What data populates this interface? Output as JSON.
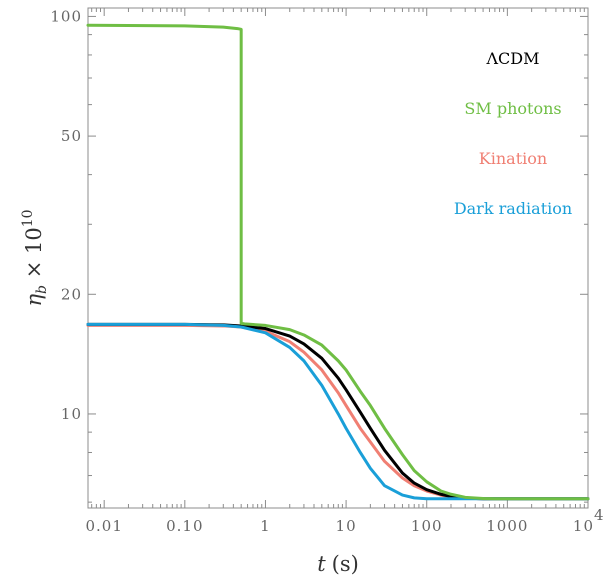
{
  "chart_data": {
    "type": "line",
    "xlabel_var": "t",
    "xlabel_unit": "(s)",
    "ylabel_var": "η",
    "ylabel_sub": "b",
    "ylabel_rest": " × 10",
    "ylabel_sup": "10",
    "x_scale": "log",
    "y_scale": "log",
    "xlim": [
      0.0063,
      10000
    ],
    "ylim": [
      5.8,
      105
    ],
    "grid": false,
    "legend_position": "top-right",
    "x_ticks_major": [
      {
        "value": 0.01,
        "label": "0.01"
      },
      {
        "value": 0.1,
        "label": "0.10"
      },
      {
        "value": 1,
        "label": "1"
      },
      {
        "value": 10,
        "label": "10"
      },
      {
        "value": 100,
        "label": "100"
      },
      {
        "value": 1000,
        "label": "1000"
      },
      {
        "value": 10000,
        "label": "10",
        "sup": "4"
      }
    ],
    "y_ticks_major": [
      {
        "value": 10,
        "label": "10"
      },
      {
        "value": 20,
        "label": "20"
      },
      {
        "value": 50,
        "label": "50"
      },
      {
        "value": 100,
        "label": "100"
      }
    ],
    "series": [
      {
        "name": "Kination",
        "color": "#f07f73",
        "x": [
          0.0063,
          0.1,
          0.3,
          0.5,
          1,
          2,
          3,
          5,
          8,
          10,
          15,
          20,
          30,
          50,
          70,
          100,
          150,
          200,
          300,
          500,
          700,
          1000,
          3000,
          10000
        ],
        "y": [
          16.7,
          16.7,
          16.65,
          16.55,
          16.15,
          15.2,
          14.3,
          12.9,
          11.3,
          10.5,
          9.2,
          8.5,
          7.6,
          6.9,
          6.6,
          6.4,
          6.25,
          6.18,
          6.14,
          6.12,
          6.12,
          6.12,
          6.12,
          6.12
        ]
      },
      {
        "name": "ΛCDM",
        "color": "#000000",
        "x": [
          0.0063,
          0.1,
          0.3,
          0.5,
          1,
          2,
          3,
          5,
          8,
          10,
          15,
          20,
          30,
          50,
          70,
          100,
          150,
          200,
          300,
          500,
          700,
          1000,
          3000,
          10000
        ],
        "y": [
          16.8,
          16.8,
          16.75,
          16.65,
          16.4,
          15.7,
          15.0,
          13.8,
          12.3,
          11.5,
          10.1,
          9.2,
          8.1,
          7.1,
          6.7,
          6.45,
          6.28,
          6.2,
          6.14,
          6.12,
          6.12,
          6.12,
          6.12,
          6.12
        ]
      },
      {
        "name": "Dark radiation",
        "color": "#1a9fd8",
        "x": [
          0.0063,
          0.1,
          0.3,
          0.5,
          1,
          2,
          3,
          5,
          8,
          10,
          15,
          20,
          30,
          50,
          70,
          100,
          150,
          200,
          300,
          500,
          1000,
          3000,
          10000
        ],
        "y": [
          16.8,
          16.8,
          16.7,
          16.55,
          16.0,
          14.7,
          13.6,
          11.8,
          10.0,
          9.2,
          8.0,
          7.3,
          6.6,
          6.25,
          6.15,
          6.12,
          6.12,
          6.12,
          6.12,
          6.12,
          6.12,
          6.12,
          6.12
        ]
      },
      {
        "name": "SM photons",
        "color": "#6fbe44",
        "x": [
          0.0063,
          0.1,
          0.3,
          0.45,
          0.5,
          0.5,
          0.55,
          1,
          2,
          3,
          5,
          8,
          10,
          15,
          20,
          30,
          50,
          70,
          100,
          150,
          200,
          300,
          500,
          700,
          1000,
          3000,
          10000
        ],
        "y": [
          95,
          94.7,
          94,
          93.2,
          92.8,
          16.9,
          16.85,
          16.7,
          16.3,
          15.8,
          14.9,
          13.6,
          12.9,
          11.4,
          10.5,
          9.2,
          7.9,
          7.2,
          6.75,
          6.4,
          6.28,
          6.17,
          6.13,
          6.12,
          6.12,
          6.12,
          6.12
        ]
      }
    ],
    "legend": [
      {
        "label": "ΛCDM",
        "color": "#000000"
      },
      {
        "label": "SM photons",
        "color": "#6fbe44"
      },
      {
        "label": "Kination",
        "color": "#f07f73"
      },
      {
        "label": "Dark radiation",
        "color": "#1a9fd8"
      }
    ]
  }
}
